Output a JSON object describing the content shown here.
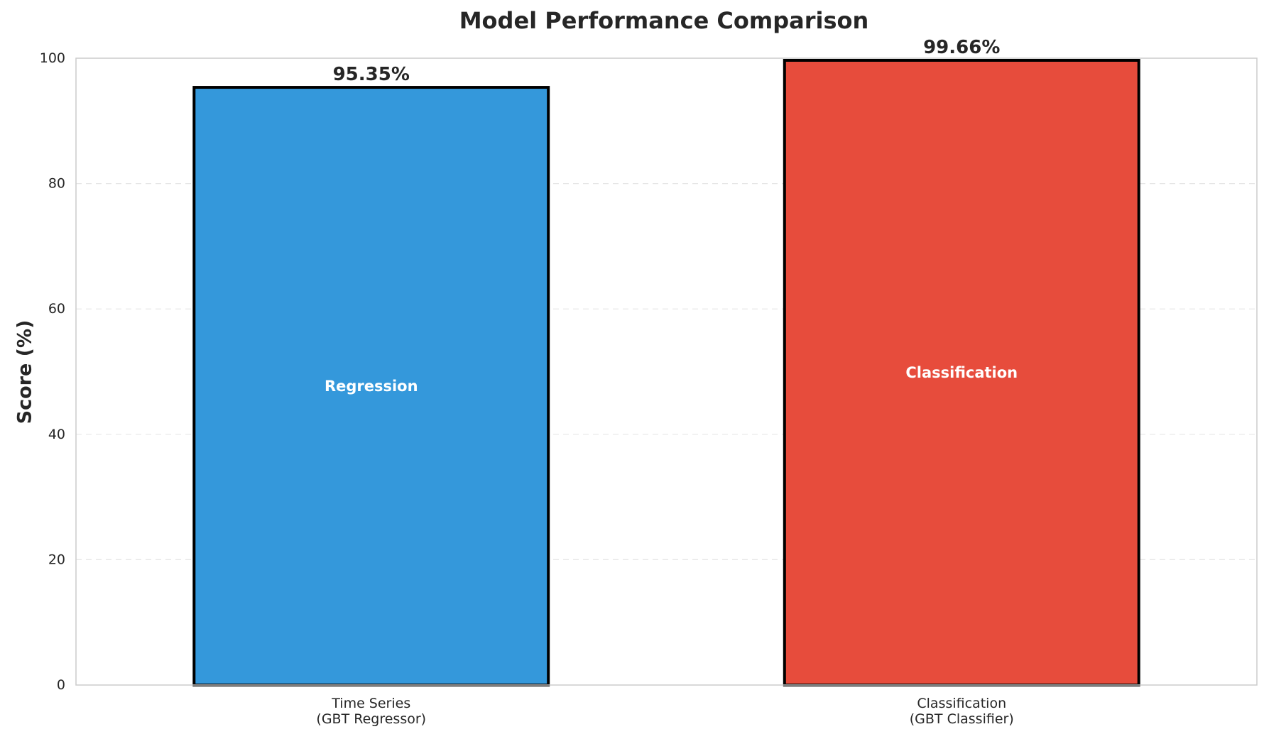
{
  "chart_data": {
    "type": "bar",
    "title": "Model Performance Comparison",
    "xlabel": "",
    "ylabel": "Score (%)",
    "ylim": [
      0,
      100
    ],
    "yticks": [
      0,
      20,
      40,
      60,
      80,
      100
    ],
    "grid": "horizontal dashed",
    "bars": [
      {
        "category_lines": [
          "Time Series",
          "(GBT Regressor)"
        ],
        "value": 95.35,
        "value_label": "95.35%",
        "inner_label": "Regression",
        "color": "#3498db"
      },
      {
        "category_lines": [
          "Classification",
          "(GBT Classifier)"
        ],
        "value": 99.66,
        "value_label": "99.66%",
        "inner_label": "Classification",
        "color": "#e74c3c"
      }
    ]
  }
}
